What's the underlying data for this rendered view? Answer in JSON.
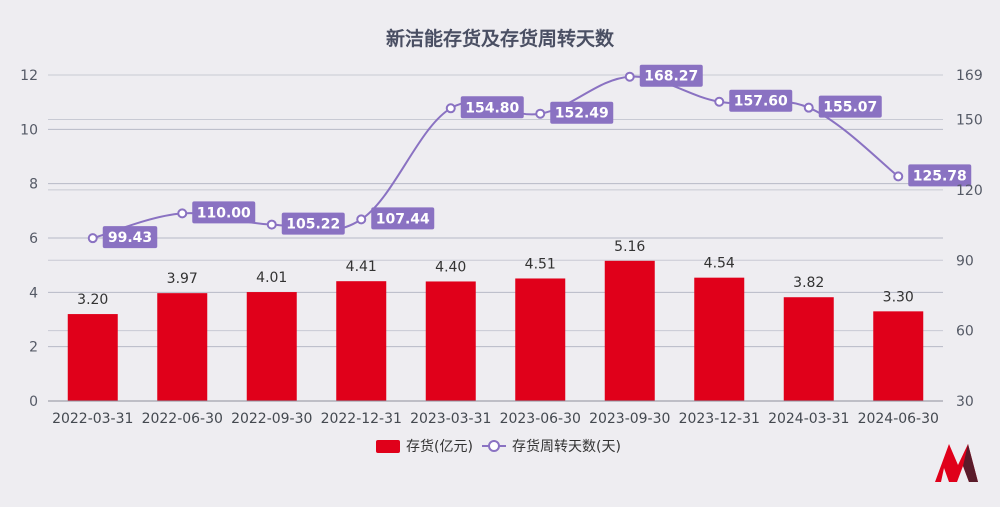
{
  "chart_data": {
    "type": "bar",
    "title": "新洁能存货及存货周转天数",
    "categories": [
      "2022-03-31",
      "2022-06-30",
      "2022-09-30",
      "2022-12-31",
      "2023-03-31",
      "2023-06-30",
      "2023-09-30",
      "2023-12-31",
      "2024-03-31",
      "2024-06-30"
    ],
    "series": [
      {
        "name": "存货(亿元)",
        "kind": "bar",
        "axis": "left",
        "color": "#e0001a",
        "values": [
          3.2,
          3.97,
          4.01,
          4.41,
          4.4,
          4.51,
          5.16,
          4.54,
          3.82,
          3.3
        ]
      },
      {
        "name": "存货周转天数(天)",
        "kind": "line",
        "axis": "right",
        "color": "#8a72c2",
        "values": [
          99.43,
          110.0,
          105.22,
          107.44,
          154.8,
          152.49,
          168.27,
          157.6,
          155.07,
          125.78
        ]
      }
    ],
    "left_axis": {
      "ylim": [
        0,
        12
      ],
      "ticks": [
        "0",
        "2",
        "4",
        "6",
        "8",
        "10",
        "12"
      ]
    },
    "right_axis": {
      "ylim": [
        30,
        169
      ],
      "ticks": [
        "30",
        "60",
        "90",
        "120",
        "150",
        "169"
      ]
    },
    "grid": true,
    "legend": "bottom-center"
  },
  "logo": "M"
}
